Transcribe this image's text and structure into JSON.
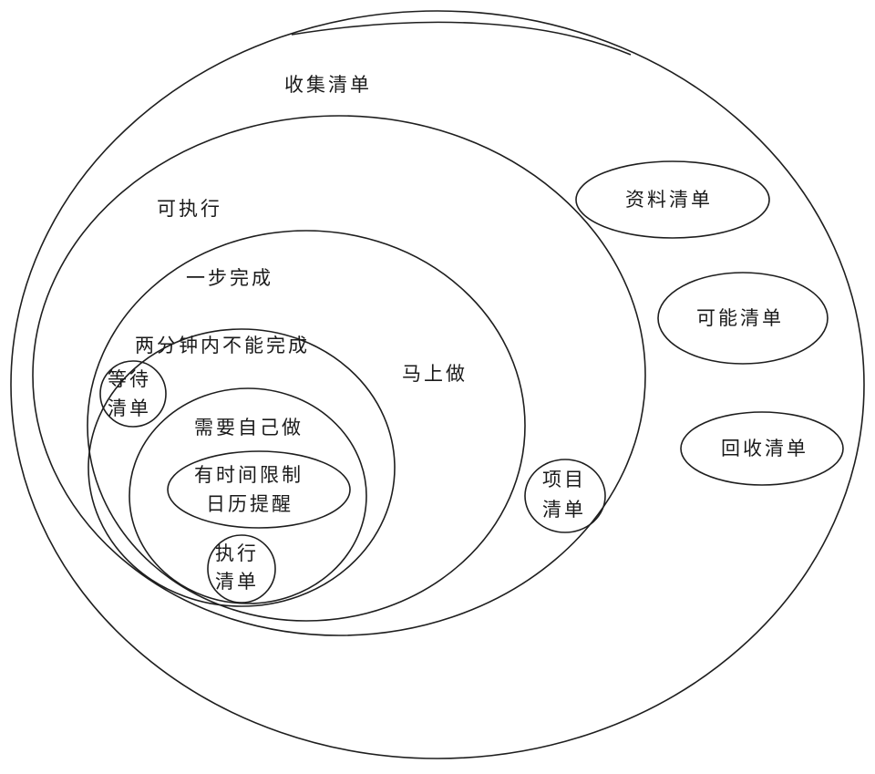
{
  "diagram": {
    "collect_list": "收集清单",
    "actionable": "可执行",
    "one_step": "一步完成",
    "do_now": "马上做",
    "over_two_minutes": "两分钟内不能完成",
    "waiting_list": [
      "等待",
      "清单"
    ],
    "do_it_myself": "需要自己做",
    "calendar_reminder": [
      "有时间限制",
      "日历提醒"
    ],
    "action_list": [
      "执行",
      "清单"
    ],
    "project_list": [
      "项目",
      "清单"
    ],
    "reference_list": "资料清单",
    "someday_list": "可能清单",
    "trash_list": "回收清单"
  },
  "colors": {
    "hatch_blue": "#a5c8ec",
    "hatch_gray": "#b9c2cc",
    "hatch_teal": "#5bb8c0",
    "hatch_indigo": "#7c6ff0",
    "hatch_violet": "#8d5bf5",
    "ink": "#1e1e1e"
  }
}
